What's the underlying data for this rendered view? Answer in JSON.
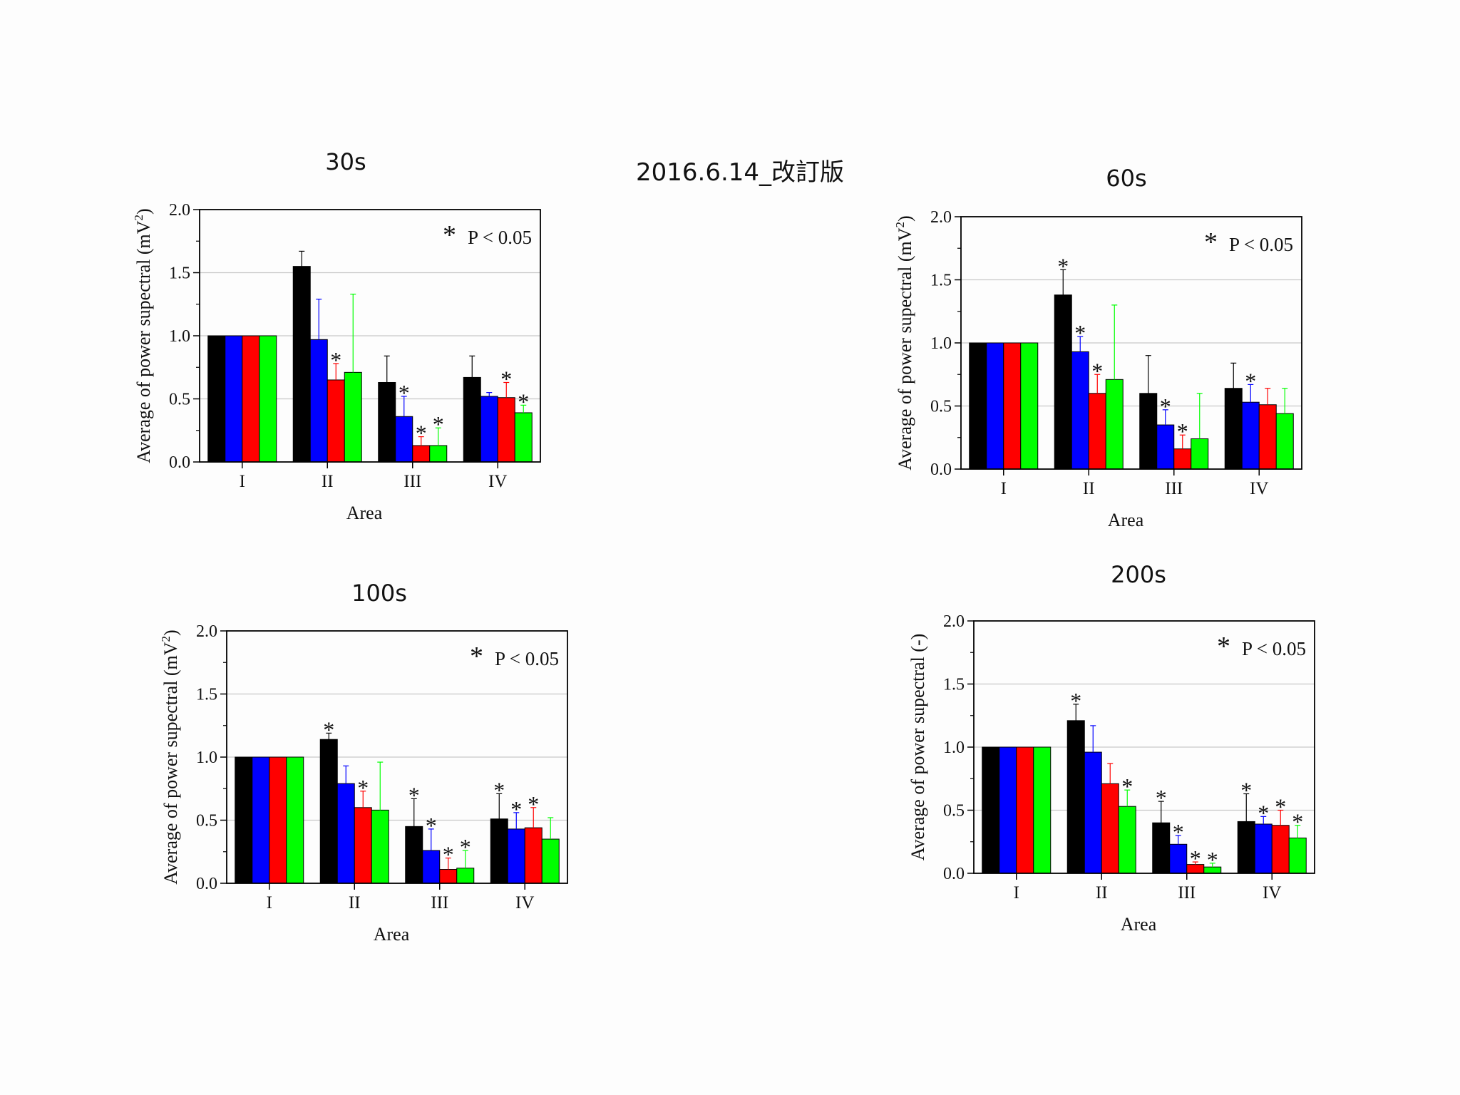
{
  "slide_title": "2016.6.14_改訂版",
  "colors": {
    "series": [
      "#000000",
      "#0000ff",
      "#ff0000",
      "#00ff00"
    ],
    "grid": "#c8c8c8",
    "axis": "#000000"
  },
  "chart_data": [
    {
      "id": "c30",
      "type": "bar",
      "title": "30s",
      "xlabel": "Area",
      "ylabel": "Average of power supectral (mV²)",
      "ylabel_main": "Average of power supectral (mV",
      "ylabel_sup": "2",
      "ylabel_tail": ")",
      "ylim": [
        0,
        2.0
      ],
      "yticks": [
        "0.0",
        "0.5",
        "1.0",
        "1.5",
        "2.0"
      ],
      "categories": [
        "I",
        "II",
        "III",
        "IV"
      ],
      "significance_note": "P < 0.05",
      "significance_mark": "*",
      "grid": true,
      "legend": "none",
      "series": [
        {
          "values": [
            1.0,
            1.55,
            0.63,
            0.67
          ],
          "errors": [
            0.0,
            0.12,
            0.21,
            0.17
          ],
          "sig": [
            false,
            false,
            false,
            false
          ]
        },
        {
          "values": [
            1.0,
            0.97,
            0.36,
            0.52
          ],
          "errors": [
            0.0,
            0.32,
            0.16,
            0.03
          ],
          "sig": [
            false,
            false,
            true,
            false
          ]
        },
        {
          "values": [
            1.0,
            0.65,
            0.13,
            0.51
          ],
          "errors": [
            0.0,
            0.13,
            0.07,
            0.12
          ],
          "sig": [
            false,
            true,
            true,
            true
          ]
        },
        {
          "values": [
            1.0,
            0.71,
            0.13,
            0.39
          ],
          "errors": [
            0.0,
            0.62,
            0.14,
            0.06
          ],
          "sig": [
            false,
            false,
            true,
            true
          ]
        }
      ]
    },
    {
      "id": "c60",
      "type": "bar",
      "title": "60s",
      "xlabel": "Area",
      "ylabel": "Average of power supectral (mV²)",
      "ylabel_main": "Average of power supectral (mV",
      "ylabel_sup": "2",
      "ylabel_tail": ")",
      "ylim": [
        0,
        2.0
      ],
      "yticks": [
        "0.0",
        "0.5",
        "1.0",
        "1.5",
        "2.0"
      ],
      "categories": [
        "I",
        "II",
        "III",
        "IV"
      ],
      "significance_note": "P < 0.05",
      "significance_mark": "*",
      "grid": true,
      "legend": "none",
      "series": [
        {
          "values": [
            1.0,
            1.38,
            0.6,
            0.64
          ],
          "errors": [
            0.0,
            0.2,
            0.3,
            0.2
          ],
          "sig": [
            false,
            true,
            false,
            false
          ]
        },
        {
          "values": [
            1.0,
            0.93,
            0.35,
            0.53
          ],
          "errors": [
            0.0,
            0.12,
            0.12,
            0.14
          ],
          "sig": [
            false,
            true,
            true,
            true
          ]
        },
        {
          "values": [
            1.0,
            0.6,
            0.16,
            0.51
          ],
          "errors": [
            0.0,
            0.15,
            0.11,
            0.13
          ],
          "sig": [
            false,
            true,
            true,
            false
          ]
        },
        {
          "values": [
            1.0,
            0.71,
            0.24,
            0.44
          ],
          "errors": [
            0.0,
            0.59,
            0.36,
            0.2
          ],
          "sig": [
            false,
            false,
            false,
            false
          ]
        }
      ]
    },
    {
      "id": "c100",
      "type": "bar",
      "title": "100s",
      "xlabel": "Area",
      "ylabel": "Average of power supectral (mV²)",
      "ylabel_main": "Average of power supectral (mV",
      "ylabel_sup": "2",
      "ylabel_tail": ")",
      "ylim": [
        0,
        2.0
      ],
      "yticks": [
        "0.0",
        "0.5",
        "1.0",
        "1.5",
        "2.0"
      ],
      "categories": [
        "I",
        "II",
        "III",
        "IV"
      ],
      "significance_note": "P < 0.05",
      "significance_mark": "*",
      "grid": true,
      "legend": "none",
      "series": [
        {
          "values": [
            1.0,
            1.14,
            0.45,
            0.51
          ],
          "errors": [
            0.0,
            0.05,
            0.22,
            0.2
          ],
          "sig": [
            false,
            true,
            true,
            true
          ]
        },
        {
          "values": [
            1.0,
            0.79,
            0.26,
            0.43
          ],
          "errors": [
            0.0,
            0.14,
            0.17,
            0.13
          ],
          "sig": [
            false,
            false,
            true,
            true
          ]
        },
        {
          "values": [
            1.0,
            0.6,
            0.11,
            0.44
          ],
          "errors": [
            0.0,
            0.13,
            0.09,
            0.16
          ],
          "sig": [
            false,
            true,
            true,
            true
          ]
        },
        {
          "values": [
            1.0,
            0.58,
            0.12,
            0.35
          ],
          "errors": [
            0.0,
            0.38,
            0.14,
            0.17
          ],
          "sig": [
            false,
            false,
            true,
            false
          ]
        }
      ]
    },
    {
      "id": "c200",
      "type": "bar",
      "title": "200s",
      "xlabel": "Area",
      "ylabel": "Average of power supectral (-)",
      "ylabel_main": "Average of power supectral (-)",
      "ylabel_sup": "",
      "ylabel_tail": "",
      "ylim": [
        0,
        2.0
      ],
      "yticks": [
        "0.0",
        "0.5",
        "1.0",
        "1.5",
        "2.0"
      ],
      "categories": [
        "I",
        "II",
        "III",
        "IV"
      ],
      "significance_note": "P < 0.05",
      "significance_mark": "*",
      "grid": true,
      "legend": "none",
      "series": [
        {
          "values": [
            1.0,
            1.21,
            0.4,
            0.41
          ],
          "errors": [
            0.0,
            0.13,
            0.17,
            0.22
          ],
          "sig": [
            false,
            true,
            true,
            true
          ]
        },
        {
          "values": [
            1.0,
            0.96,
            0.23,
            0.39
          ],
          "errors": [
            0.0,
            0.21,
            0.07,
            0.06
          ],
          "sig": [
            false,
            false,
            true,
            true
          ]
        },
        {
          "values": [
            1.0,
            0.71,
            0.07,
            0.38
          ],
          "errors": [
            0.0,
            0.16,
            0.02,
            0.12
          ],
          "sig": [
            false,
            false,
            true,
            true
          ]
        },
        {
          "values": [
            1.0,
            0.53,
            0.05,
            0.28
          ],
          "errors": [
            0.0,
            0.13,
            0.03,
            0.1
          ],
          "sig": [
            false,
            true,
            true,
            true
          ]
        }
      ]
    }
  ]
}
